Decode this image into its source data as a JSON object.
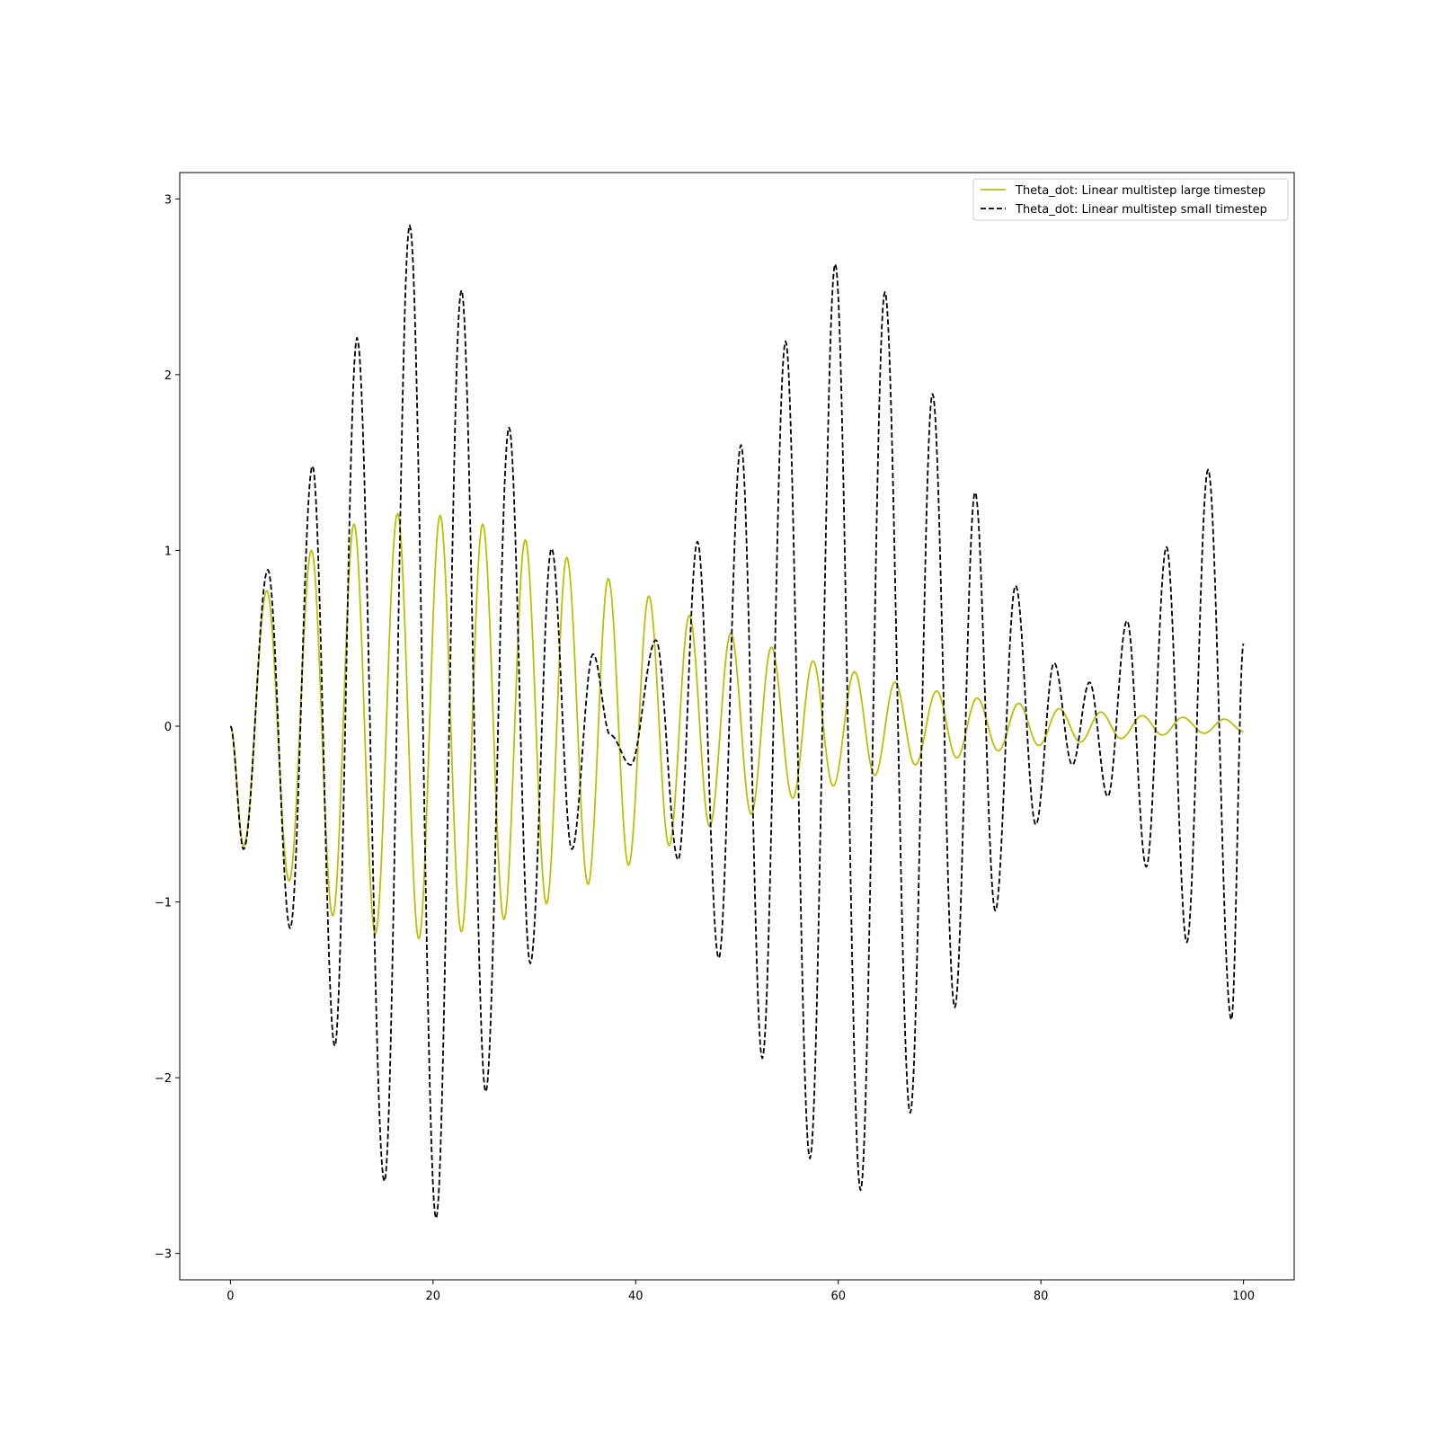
{
  "chart_data": {
    "type": "line",
    "title": "",
    "xlabel": "",
    "ylabel": "",
    "xlim": [
      -5,
      105
    ],
    "ylim": [
      -3.15,
      3.15
    ],
    "x_ticks": [
      0,
      20,
      40,
      60,
      80,
      100
    ],
    "y_ticks": [
      -3,
      -2,
      -1,
      0,
      1,
      2,
      3
    ],
    "x_tick_labels": [
      "0",
      "20",
      "40",
      "60",
      "80",
      "100"
    ],
    "y_tick_labels": [
      "−3",
      "−2",
      "−1",
      "0",
      "1",
      "2",
      "3"
    ],
    "grid": false,
    "legend_position": "top-right",
    "series": [
      {
        "name": "Theta_dot: Linear multistep large timestep",
        "color": "#bfbf00",
        "style": "solid",
        "extrema": [
          [
            0,
            0
          ],
          [
            1.3,
            -0.68
          ],
          [
            3.6,
            0.77
          ],
          [
            5.8,
            -0.88
          ],
          [
            8.0,
            1.0
          ],
          [
            10.1,
            -1.08
          ],
          [
            12.2,
            1.15
          ],
          [
            14.3,
            -1.18
          ],
          [
            16.5,
            1.21
          ],
          [
            18.6,
            -1.21
          ],
          [
            20.7,
            1.2
          ],
          [
            22.8,
            -1.17
          ],
          [
            24.9,
            1.15
          ],
          [
            27.0,
            -1.1
          ],
          [
            29.1,
            1.06
          ],
          [
            31.2,
            -1.01
          ],
          [
            33.2,
            0.96
          ],
          [
            35.3,
            -0.9
          ],
          [
            37.3,
            0.84
          ],
          [
            39.3,
            -0.79
          ],
          [
            41.3,
            0.74
          ],
          [
            43.3,
            -0.68
          ],
          [
            45.3,
            0.63
          ],
          [
            47.3,
            -0.57
          ],
          [
            49.4,
            0.53
          ],
          [
            51.4,
            -0.5
          ],
          [
            53.4,
            0.45
          ],
          [
            55.5,
            -0.41
          ],
          [
            57.5,
            0.37
          ],
          [
            59.5,
            -0.34
          ],
          [
            61.6,
            0.31
          ],
          [
            63.6,
            -0.28
          ],
          [
            65.6,
            0.25
          ],
          [
            67.6,
            -0.22
          ],
          [
            69.7,
            0.2
          ],
          [
            71.7,
            -0.18
          ],
          [
            73.7,
            0.16
          ],
          [
            75.8,
            -0.14
          ],
          [
            77.8,
            0.13
          ],
          [
            79.8,
            -0.11
          ],
          [
            81.8,
            0.1
          ],
          [
            83.9,
            -0.09
          ],
          [
            85.9,
            0.08
          ],
          [
            87.9,
            -0.07
          ],
          [
            90.0,
            0.06
          ],
          [
            92.0,
            -0.05
          ],
          [
            94.0,
            0.05
          ],
          [
            96.1,
            -0.04
          ],
          [
            98.1,
            0.04
          ],
          [
            100,
            -0.03
          ]
        ]
      },
      {
        "name": "Theta_dot: Linear multistep small timestep",
        "color": "#000000",
        "style": "dashed",
        "extrema": [
          [
            0,
            0
          ],
          [
            1.3,
            -0.7
          ],
          [
            3.7,
            0.89
          ],
          [
            5.9,
            -1.15
          ],
          [
            8.1,
            1.48
          ],
          [
            10.3,
            -1.82
          ],
          [
            12.5,
            2.21
          ],
          [
            15.2,
            -2.59
          ],
          [
            17.7,
            2.85
          ],
          [
            20.3,
            -2.8
          ],
          [
            22.8,
            2.48
          ],
          [
            25.2,
            -2.08
          ],
          [
            27.5,
            1.7
          ],
          [
            29.6,
            -1.35
          ],
          [
            31.7,
            1.01
          ],
          [
            33.7,
            -0.7
          ],
          [
            35.8,
            0.41
          ],
          [
            37.5,
            -0.05
          ],
          [
            39.5,
            -0.22
          ],
          [
            42.0,
            0.49
          ],
          [
            44.2,
            -0.76
          ],
          [
            46.1,
            1.05
          ],
          [
            48.2,
            -1.32
          ],
          [
            50.4,
            1.6
          ],
          [
            52.5,
            -1.89
          ],
          [
            54.8,
            2.19
          ],
          [
            57.2,
            -2.46
          ],
          [
            59.7,
            2.63
          ],
          [
            62.2,
            -2.64
          ],
          [
            64.6,
            2.47
          ],
          [
            67.1,
            -2.2
          ],
          [
            69.3,
            1.89
          ],
          [
            71.5,
            -1.6
          ],
          [
            73.5,
            1.33
          ],
          [
            75.5,
            -1.05
          ],
          [
            77.5,
            0.8
          ],
          [
            79.5,
            -0.56
          ],
          [
            81.3,
            0.36
          ],
          [
            83.1,
            -0.22
          ],
          [
            84.8,
            0.25
          ],
          [
            86.6,
            -0.4
          ],
          [
            88.5,
            0.6
          ],
          [
            90.4,
            -0.8
          ],
          [
            92.4,
            1.02
          ],
          [
            94.4,
            -1.23
          ],
          [
            96.5,
            1.46
          ],
          [
            98.8,
            -1.67
          ],
          [
            100,
            0.47
          ]
        ]
      }
    ]
  }
}
